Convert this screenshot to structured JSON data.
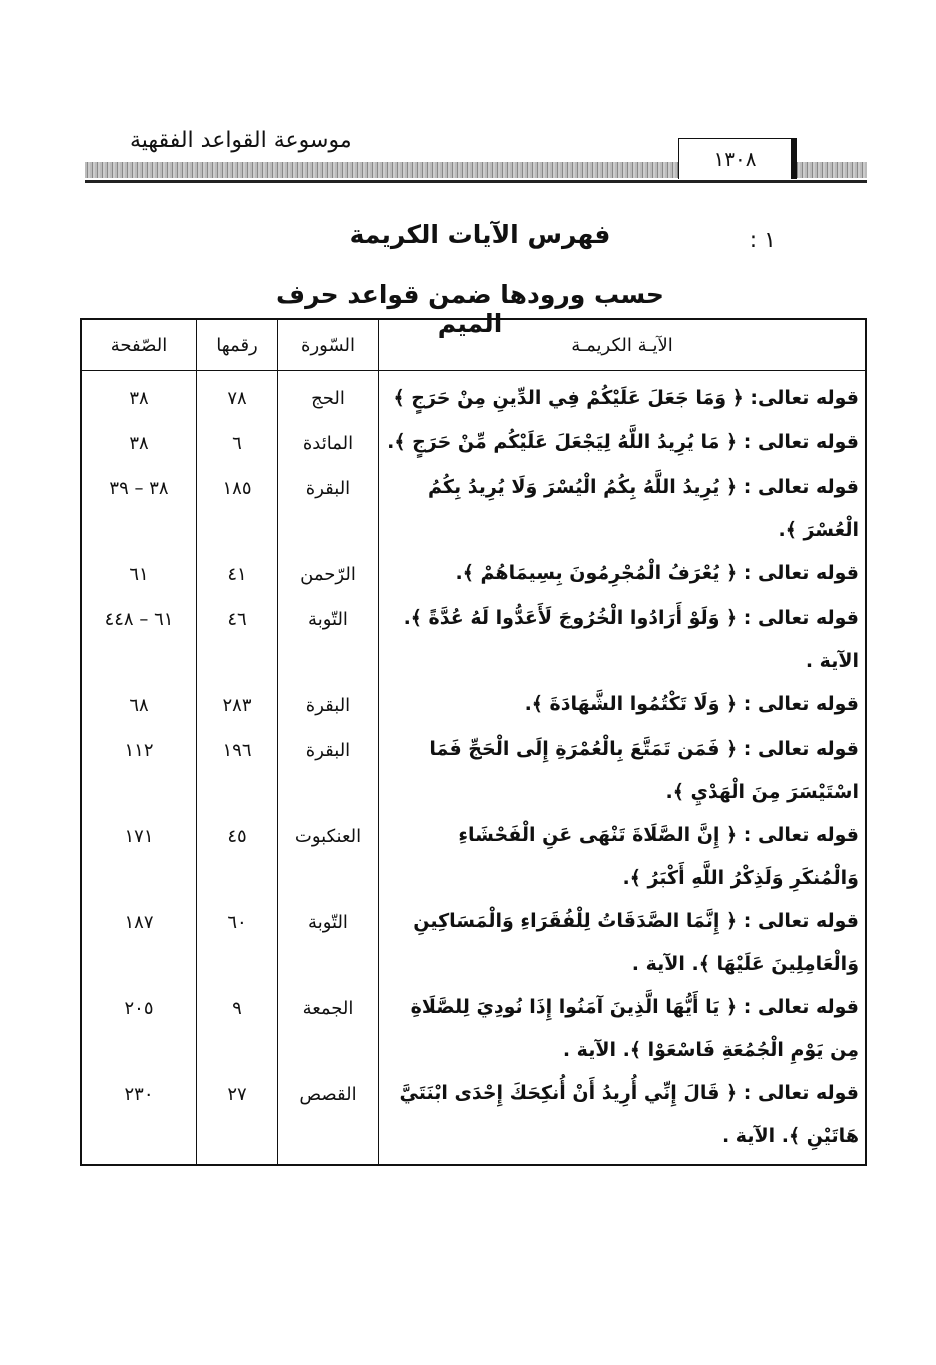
{
  "header": {
    "running_title": "موسوعة القواعد الفقهية",
    "page_number": "١٣٠٨"
  },
  "section": {
    "number": "١ :",
    "title": "فهرس الآيات الكريمة",
    "subtitle": "حسب ورودها ضمن قواعد حرف الميم"
  },
  "table": {
    "columns": [
      "الآيـة الكريمـة",
      "السّورة",
      "رقمها",
      "الصّفحة"
    ],
    "rows": [
      {
        "verse": "قوله تعالى: ﴿ وَمَا جَعَلَ عَلَيْكُمْ فِي الدِّينِ مِنْ حَرَجٍ ﴾",
        "surah": "الحج",
        "number": "٧٨",
        "page": "٣٨"
      },
      {
        "verse": "قوله تعالى : ﴿ مَا يُرِيدُ اللَّهُ لِيَجْعَلَ عَلَيْكُم مِّنْ حَرَجٍ ﴾.",
        "surah": "المائدة",
        "number": "٦",
        "page": "٣٨"
      },
      {
        "verse": "قوله تعالى : ﴿ يُرِيدُ اللَّهُ بِكُمُ الْيُسْرَ وَلَا يُرِيدُ بِكُمُ الْعُسْرَ ﴾.",
        "surah": "البقرة",
        "number": "١٨٥",
        "page": "٣٨ – ٣٩"
      },
      {
        "verse": "قوله تعالى : ﴿ يُعْرَفُ الْمُجْرِمُونَ بِسِيمَاهُمْ ﴾.",
        "surah": "الرّحمن",
        "number": "٤١",
        "page": "٦١"
      },
      {
        "verse": "قوله تعالى : ﴿ وَلَوْ أَرَادُوا الْخُرُوجَ لَأَعَدُّوا لَهُ عُدَّةً ﴾. الآية .",
        "surah": "التّوبة",
        "number": "٤٦",
        "page": "٦١ – ٤٤٨"
      },
      {
        "verse": "قوله تعالى : ﴿ وَلَا تَكْتُمُوا الشَّهَادَةَ ﴾.",
        "surah": "البقرة",
        "number": "٢٨٣",
        "page": "٦٨"
      },
      {
        "verse": "قوله تعالى : ﴿ فَمَن تَمَتَّعَ بِالْعُمْرَةِ إِلَى الْحَجِّ فَمَا اسْتَيْسَرَ مِنَ الْهَدْيِ ﴾.",
        "surah": "البقرة",
        "number": "١٩٦",
        "page": "١١٢"
      },
      {
        "verse": "قوله تعالى : ﴿ إِنَّ الصَّلَاةَ تَنْهَى عَنِ الْفَحْشَاءِ وَالْمُنكَرِ وَلَذِكْرُ اللَّهِ أَكْبَرُ ﴾.",
        "surah": "العنكبوت",
        "number": "٤٥",
        "page": "١٧١"
      },
      {
        "verse": "قوله تعالى : ﴿ إِنَّمَا الصَّدَقَاتُ لِلْفُقَرَاءِ وَالْمَسَاكِينِ وَالْعَامِلِينَ عَلَيْهَا ﴾. الآية .",
        "surah": "التّوبة",
        "number": "٦٠",
        "page": "١٨٧"
      },
      {
        "verse": "قوله تعالى : ﴿ يَا أَيُّهَا الَّذِينَ آمَنُوا إِذَا نُودِيَ لِلصَّلَاةِ مِن يَوْمِ الْجُمُعَةِ فَاسْعَوْا ﴾. الآية .",
        "surah": "الجمعة",
        "number": "٩",
        "page": "٢٠٥"
      },
      {
        "verse": "قوله تعالى : ﴿ قَالَ إِنِّي أُرِيدُ أَنْ أُنكِحَكَ إِحْدَى ابْنَتَيَّ هَاتَيْنِ ﴾. الآية .",
        "surah": "القصص",
        "number": "٢٧",
        "page": "٢٣٠"
      }
    ]
  }
}
